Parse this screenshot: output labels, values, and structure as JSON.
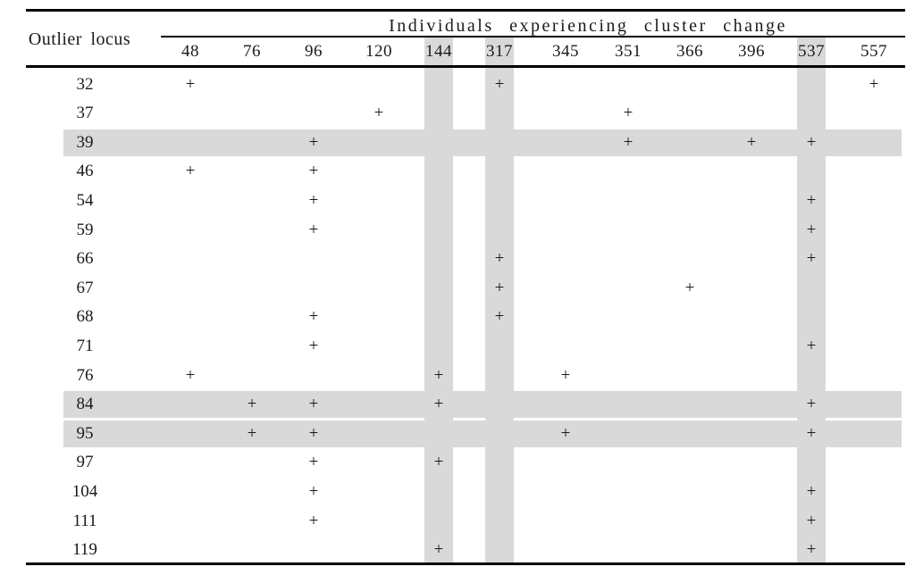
{
  "table": {
    "row_header": "Outlier locus",
    "group_header": "Individuals experiencing cluster change",
    "mark_symbol": "+",
    "columns": [
      "48",
      "76",
      "96",
      "120",
      "144",
      "317",
      "345",
      "351",
      "366",
      "396",
      "537",
      "557"
    ],
    "rows": [
      {
        "locus": "32",
        "marks": [
          "48",
          "317",
          "557"
        ]
      },
      {
        "locus": "37",
        "marks": [
          "120",
          "351"
        ]
      },
      {
        "locus": "39",
        "marks": [
          "96",
          "351",
          "396",
          "537"
        ]
      },
      {
        "locus": "46",
        "marks": [
          "48",
          "96"
        ]
      },
      {
        "locus": "54",
        "marks": [
          "96",
          "537"
        ]
      },
      {
        "locus": "59",
        "marks": [
          "96",
          "537"
        ]
      },
      {
        "locus": "66",
        "marks": [
          "317",
          "537"
        ]
      },
      {
        "locus": "67",
        "marks": [
          "317",
          "366"
        ]
      },
      {
        "locus": "68",
        "marks": [
          "96",
          "317"
        ]
      },
      {
        "locus": "71",
        "marks": [
          "96",
          "537"
        ]
      },
      {
        "locus": "76",
        "marks": [
          "48",
          "144",
          "345"
        ]
      },
      {
        "locus": "84",
        "marks": [
          "76",
          "96",
          "144",
          "537"
        ]
      },
      {
        "locus": "95",
        "marks": [
          "76",
          "96",
          "345",
          "537"
        ]
      },
      {
        "locus": "97",
        "marks": [
          "96",
          "144"
        ]
      },
      {
        "locus": "104",
        "marks": [
          "96",
          "537"
        ]
      },
      {
        "locus": "111",
        "marks": [
          "96",
          "537"
        ]
      },
      {
        "locus": "119",
        "marks": [
          "144",
          "537"
        ]
      }
    ],
    "highlighted_rows": [
      "39",
      "84",
      "95"
    ],
    "highlighted_columns": [
      "144",
      "317",
      "537"
    ],
    "colors": {
      "highlight": "#d9d9d9",
      "rule": "#000000",
      "text": "#1a1a1a",
      "background": "#ffffff"
    }
  },
  "chart_data": {
    "type": "table",
    "title": "Individuals experiencing cluster change",
    "row_label": "Outlier locus",
    "columns": [
      "48",
      "76",
      "96",
      "120",
      "144",
      "317",
      "345",
      "351",
      "366",
      "396",
      "537",
      "557"
    ],
    "rows": [
      "32",
      "37",
      "39",
      "46",
      "54",
      "59",
      "66",
      "67",
      "68",
      "71",
      "76",
      "84",
      "95",
      "97",
      "104",
      "111",
      "119"
    ],
    "matrix": [
      [
        "+",
        "",
        "",
        "",
        "",
        "+",
        "",
        "",
        "",
        "",
        "",
        "+"
      ],
      [
        "",
        "",
        "",
        "+",
        "",
        "",
        "",
        "+",
        "",
        "",
        "",
        ""
      ],
      [
        "",
        "",
        "+",
        "",
        "",
        "",
        "",
        "+",
        "",
        "+",
        "+",
        ""
      ],
      [
        "+",
        "",
        "+",
        "",
        "",
        "",
        "",
        "",
        "",
        "",
        "",
        ""
      ],
      [
        "",
        "",
        "+",
        "",
        "",
        "",
        "",
        "",
        "",
        "",
        "+",
        ""
      ],
      [
        "",
        "",
        "+",
        "",
        "",
        "",
        "",
        "",
        "",
        "",
        "+",
        ""
      ],
      [
        "",
        "",
        "",
        "",
        "",
        "+",
        "",
        "",
        "",
        "",
        "+",
        ""
      ],
      [
        "",
        "",
        "",
        "",
        "",
        "+",
        "",
        "",
        "+",
        "",
        "",
        ""
      ],
      [
        "",
        "",
        "+",
        "",
        "",
        "+",
        "",
        "",
        "",
        "",
        "",
        ""
      ],
      [
        "",
        "",
        "+",
        "",
        "",
        "",
        "",
        "",
        "",
        "",
        "+",
        ""
      ],
      [
        "+",
        "",
        "",
        "",
        "+",
        "",
        "+",
        "",
        "",
        "",
        "",
        ""
      ],
      [
        "",
        "+",
        "+",
        "",
        "+",
        "",
        "",
        "",
        "",
        "",
        "+",
        ""
      ],
      [
        "",
        "+",
        "+",
        "",
        "",
        "",
        "+",
        "",
        "",
        "",
        "+",
        ""
      ],
      [
        "",
        "",
        "+",
        "",
        "+",
        "",
        "",
        "",
        "",
        "",
        "",
        ""
      ],
      [
        "",
        "",
        "+",
        "",
        "",
        "",
        "",
        "",
        "",
        "",
        "+",
        ""
      ],
      [
        "",
        "",
        "+",
        "",
        "",
        "",
        "",
        "",
        "",
        "",
        "+",
        ""
      ],
      [
        "",
        "",
        "",
        "",
        "+",
        "",
        "",
        "",
        "",
        "",
        "+",
        ""
      ]
    ],
    "highlighted_rows": [
      "39",
      "84",
      "95"
    ],
    "highlighted_columns": [
      "144",
      "317",
      "537"
    ]
  }
}
